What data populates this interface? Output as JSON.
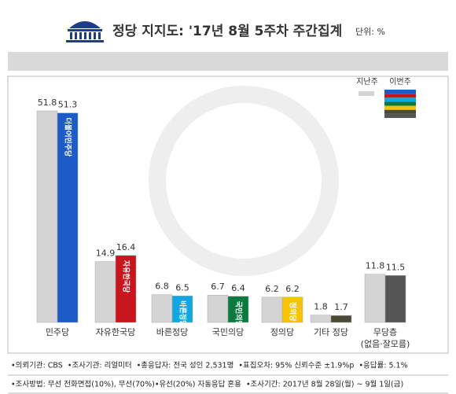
{
  "chart_data": {
    "type": "bar",
    "title": "정당 지지도: '17년 8월 5주차 주간집계",
    "unit": "단위: %",
    "categories": [
      "민주당",
      "자유한국당",
      "바른정당",
      "국민의당",
      "정의당",
      "기타 정당",
      "무당층\n(없음·잘모름)"
    ],
    "series": [
      {
        "name": "지난주",
        "color": "#d4d4d4",
        "values": [
          51.8,
          14.9,
          6.8,
          6.7,
          6.2,
          1.8,
          11.8
        ]
      },
      {
        "name": "이번주",
        "colors": [
          "#1d5bc6",
          "#c9151e",
          "#12a7e3",
          "#0a7a3e",
          "#f6c400",
          "#4b4a36",
          "#555555"
        ],
        "labels": [
          "더불어민주당",
          "자유한국당",
          "바른정당",
          "국민의당",
          "정의당",
          null,
          null
        ],
        "values": [
          51.3,
          16.4,
          6.5,
          6.4,
          6.2,
          1.7,
          11.5
        ]
      }
    ],
    "ylim": [
      0,
      52
    ],
    "notes": [
      "•의뢰기관: CBS  •조사기관: 리얼미터  •총응답자: 전국 성인 2,531명  •표집오차: 95% 신뢰수준 ±1.9%p  •응답률: 5.1%",
      "•조사방법: 무선 전화면접(10%), 무선(70%)•유선(20%) 자동응답 혼용  •조사기간: 2017년 8월 28일(월) ~ 9월 1일(금)"
    ]
  }
}
